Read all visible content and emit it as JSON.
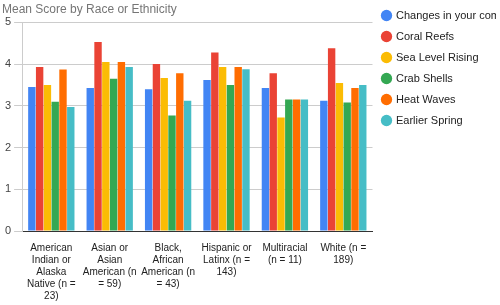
{
  "chart_data": {
    "type": "bar",
    "title": "Mean Score by Race or Ethnicity",
    "categories": [
      "American Indian or Alaska Native (n = 23)",
      "Asian or Asian American (n = 59)",
      "Black, African American (n = 43)",
      "Hispanic or Latinx (n = 143)",
      "Multiracial (n = 11)",
      "White (n = 189)"
    ],
    "series": [
      {
        "name": "Changes in your community",
        "color": "#4285f4",
        "values": [
          3.45,
          3.43,
          3.4,
          3.62,
          3.43,
          3.12
        ]
      },
      {
        "name": "Coral Reefs",
        "color": "#ea4335",
        "values": [
          3.93,
          4.53,
          4.0,
          4.28,
          3.78,
          4.38
        ]
      },
      {
        "name": "Sea Level Rising",
        "color": "#fbbc04",
        "values": [
          3.5,
          4.05,
          3.67,
          3.93,
          2.72,
          3.55
        ]
      },
      {
        "name": "Crab Shells",
        "color": "#34a853",
        "values": [
          3.1,
          3.65,
          2.77,
          3.5,
          3.15,
          3.08
        ]
      },
      {
        "name": "Heat Waves",
        "color": "#ff6d01",
        "values": [
          3.87,
          4.05,
          3.78,
          3.93,
          3.15,
          3.43
        ]
      },
      {
        "name": "Earlier Spring",
        "color": "#46bdc6",
        "values": [
          2.97,
          3.93,
          3.12,
          3.88,
          3.15,
          3.5
        ]
      }
    ],
    "ylim": [
      0,
      5
    ],
    "yticks": [
      0,
      1,
      2,
      3,
      4,
      5
    ],
    "grid": true,
    "legend": "right"
  }
}
